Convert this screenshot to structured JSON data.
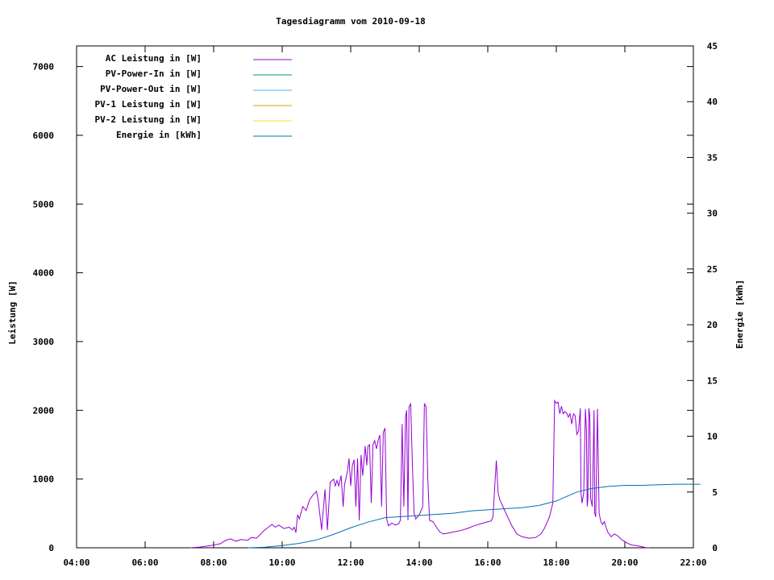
{
  "chart_data": {
    "type": "line",
    "title": "Tagesdiagramm vom 2010-09-18",
    "xlabel": "",
    "ylabel": "Leistung [W]",
    "y2label": "Energie [kWh]",
    "x_ticks": [
      "04:00",
      "06:00",
      "08:00",
      "10:00",
      "12:00",
      "14:00",
      "16:00",
      "18:00",
      "20:00",
      "22:00"
    ],
    "xlim_hours": [
      4,
      22
    ],
    "ylim": [
      0,
      7300
    ],
    "y_ticks": [
      0,
      1000,
      2000,
      3000,
      4000,
      5000,
      6000,
      7000
    ],
    "y2lim": [
      0,
      45
    ],
    "y2_ticks": [
      0,
      5,
      10,
      15,
      20,
      25,
      30,
      35,
      40,
      45
    ],
    "legend_position": "top-left",
    "colors": {
      "ac": "#9400d3",
      "pv_in": "#009e73",
      "pv_out": "#56b4e9",
      "pv1": "#e69f00",
      "pv2": "#f0e442",
      "energy": "#0072b2"
    },
    "series": [
      {
        "name": "AC Leistung in [W]",
        "axis": "left",
        "color_key": "ac",
        "points": [
          [
            7.3,
            0
          ],
          [
            7.6,
            10
          ],
          [
            7.9,
            30
          ],
          [
            8.2,
            60
          ],
          [
            8.35,
            110
          ],
          [
            8.5,
            130
          ],
          [
            8.65,
            95
          ],
          [
            8.8,
            120
          ],
          [
            9.0,
            110
          ],
          [
            9.1,
            150
          ],
          [
            9.25,
            140
          ],
          [
            9.45,
            240
          ],
          [
            9.6,
            300
          ],
          [
            9.7,
            340
          ],
          [
            9.8,
            300
          ],
          [
            9.9,
            330
          ],
          [
            10.05,
            280
          ],
          [
            10.2,
            300
          ],
          [
            10.3,
            260
          ],
          [
            10.35,
            300
          ],
          [
            10.4,
            220
          ],
          [
            10.45,
            480
          ],
          [
            10.5,
            420
          ],
          [
            10.6,
            600
          ],
          [
            10.7,
            540
          ],
          [
            10.8,
            700
          ],
          [
            10.9,
            770
          ],
          [
            11.0,
            820
          ],
          [
            11.05,
            700
          ],
          [
            11.12,
            400
          ],
          [
            11.15,
            260
          ],
          [
            11.25,
            850
          ],
          [
            11.32,
            260
          ],
          [
            11.4,
            950
          ],
          [
            11.5,
            1000
          ],
          [
            11.55,
            900
          ],
          [
            11.6,
            980
          ],
          [
            11.65,
            900
          ],
          [
            11.72,
            1050
          ],
          [
            11.78,
            600
          ],
          [
            11.82,
            920
          ],
          [
            11.9,
            1100
          ],
          [
            11.95,
            1300
          ],
          [
            12.0,
            900
          ],
          [
            12.05,
            1200
          ],
          [
            12.1,
            1280
          ],
          [
            12.15,
            600
          ],
          [
            12.2,
            1300
          ],
          [
            12.25,
            400
          ],
          [
            12.3,
            1350
          ],
          [
            12.35,
            1050
          ],
          [
            12.42,
            1480
          ],
          [
            12.47,
            1200
          ],
          [
            12.5,
            1480
          ],
          [
            12.55,
            1500
          ],
          [
            12.6,
            650
          ],
          [
            12.65,
            1500
          ],
          [
            12.7,
            1560
          ],
          [
            12.75,
            1440
          ],
          [
            12.8,
            1560
          ],
          [
            12.85,
            1640
          ],
          [
            12.9,
            600
          ],
          [
            12.95,
            1680
          ],
          [
            13.0,
            1740
          ],
          [
            13.05,
            420
          ],
          [
            13.1,
            320
          ],
          [
            13.2,
            360
          ],
          [
            13.3,
            330
          ],
          [
            13.4,
            350
          ],
          [
            13.45,
            400
          ],
          [
            13.5,
            1800
          ],
          [
            13.55,
            600
          ],
          [
            13.6,
            1900
          ],
          [
            13.63,
            2000
          ],
          [
            13.67,
            400
          ],
          [
            13.7,
            2050
          ],
          [
            13.75,
            2100
          ],
          [
            13.8,
            1200
          ],
          [
            13.85,
            500
          ],
          [
            13.9,
            420
          ],
          [
            14.0,
            480
          ],
          [
            14.1,
            600
          ],
          [
            14.15,
            2100
          ],
          [
            14.2,
            2050
          ],
          [
            14.25,
            1000
          ],
          [
            14.3,
            400
          ],
          [
            14.4,
            380
          ],
          [
            14.5,
            300
          ],
          [
            14.6,
            230
          ],
          [
            14.7,
            200
          ],
          [
            14.8,
            210
          ],
          [
            15.0,
            230
          ],
          [
            15.2,
            250
          ],
          [
            15.4,
            280
          ],
          [
            15.6,
            320
          ],
          [
            15.8,
            350
          ],
          [
            16.0,
            380
          ],
          [
            16.1,
            390
          ],
          [
            16.15,
            450
          ],
          [
            16.25,
            1270
          ],
          [
            16.3,
            800
          ],
          [
            16.35,
            700
          ],
          [
            16.45,
            590
          ],
          [
            16.55,
            480
          ],
          [
            16.7,
            320
          ],
          [
            16.85,
            200
          ],
          [
            17.0,
            160
          ],
          [
            17.2,
            140
          ],
          [
            17.4,
            150
          ],
          [
            17.55,
            200
          ],
          [
            17.65,
            280
          ],
          [
            17.8,
            450
          ],
          [
            17.9,
            650
          ],
          [
            17.95,
            2140
          ],
          [
            18.0,
            2100
          ],
          [
            18.05,
            2120
          ],
          [
            18.1,
            1950
          ],
          [
            18.15,
            2060
          ],
          [
            18.2,
            1950
          ],
          [
            18.25,
            1980
          ],
          [
            18.3,
            1960
          ],
          [
            18.35,
            1900
          ],
          [
            18.4,
            1950
          ],
          [
            18.45,
            1800
          ],
          [
            18.5,
            1950
          ],
          [
            18.55,
            1920
          ],
          [
            18.6,
            1650
          ],
          [
            18.65,
            1700
          ],
          [
            18.7,
            2030
          ],
          [
            18.72,
            800
          ],
          [
            18.75,
            650
          ],
          [
            18.8,
            800
          ],
          [
            18.85,
            2020
          ],
          [
            18.88,
            1700
          ],
          [
            18.9,
            600
          ],
          [
            18.92,
            700
          ],
          [
            18.95,
            2030
          ],
          [
            18.98,
            1900
          ],
          [
            19.0,
            720
          ],
          [
            19.05,
            600
          ],
          [
            19.1,
            2000
          ],
          [
            19.12,
            500
          ],
          [
            19.15,
            450
          ],
          [
            19.2,
            2020
          ],
          [
            19.25,
            500
          ],
          [
            19.3,
            380
          ],
          [
            19.35,
            340
          ],
          [
            19.4,
            380
          ],
          [
            19.45,
            300
          ],
          [
            19.5,
            230
          ],
          [
            19.6,
            160
          ],
          [
            19.7,
            200
          ],
          [
            19.8,
            170
          ],
          [
            19.9,
            120
          ],
          [
            20.0,
            90
          ],
          [
            20.1,
            60
          ],
          [
            20.2,
            40
          ],
          [
            20.35,
            30
          ],
          [
            20.5,
            15
          ],
          [
            20.6,
            5
          ],
          [
            20.7,
            0
          ]
        ]
      },
      {
        "name": "PV-Power-In in [W]",
        "axis": "left",
        "color_key": "pv_in",
        "points": []
      },
      {
        "name": "PV-Power-Out in [W]",
        "axis": "left",
        "color_key": "pv_out",
        "points": []
      },
      {
        "name": "PV-1 Leistung in [W]",
        "axis": "left",
        "color_key": "pv1",
        "points": []
      },
      {
        "name": "PV-2 Leistung in [W]",
        "axis": "left",
        "color_key": "pv2",
        "points": []
      },
      {
        "name": "Energie in [kWh]",
        "axis": "right",
        "color_key": "energy",
        "points": [
          [
            9.0,
            0
          ],
          [
            9.5,
            0.05
          ],
          [
            10.0,
            0.2
          ],
          [
            10.5,
            0.4
          ],
          [
            11.0,
            0.7
          ],
          [
            11.5,
            1.2
          ],
          [
            12.0,
            1.8
          ],
          [
            12.5,
            2.3
          ],
          [
            13.0,
            2.7
          ],
          [
            13.5,
            2.8
          ],
          [
            14.0,
            2.9
          ],
          [
            14.5,
            3.0
          ],
          [
            15.0,
            3.1
          ],
          [
            15.5,
            3.3
          ],
          [
            16.0,
            3.4
          ],
          [
            16.5,
            3.5
          ],
          [
            17.0,
            3.6
          ],
          [
            17.5,
            3.8
          ],
          [
            18.0,
            4.2
          ],
          [
            18.3,
            4.6
          ],
          [
            18.6,
            5.0
          ],
          [
            19.0,
            5.3
          ],
          [
            19.5,
            5.5
          ],
          [
            20.0,
            5.6
          ],
          [
            20.5,
            5.6
          ],
          [
            21.0,
            5.65
          ],
          [
            21.5,
            5.7
          ],
          [
            22.0,
            5.7
          ],
          [
            22.2,
            5.7
          ]
        ]
      }
    ]
  }
}
